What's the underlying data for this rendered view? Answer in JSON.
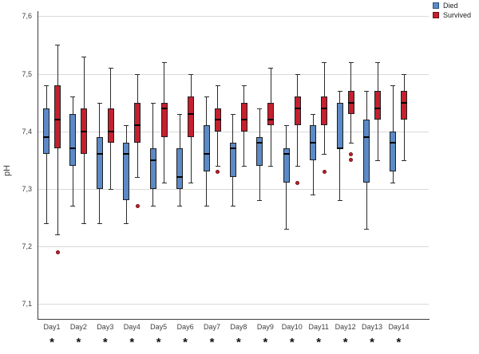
{
  "legend": {
    "items": [
      {
        "label": "Died",
        "color": "#5B8AC6",
        "border": "#2a4d7f"
      },
      {
        "label": "Survived",
        "color": "#C4202E",
        "border": "#6e0f18"
      }
    ]
  },
  "chart_data": {
    "type": "boxplot",
    "title": "",
    "xlabel": "",
    "ylabel": "pH",
    "ylim": [
      7.07,
      7.61
    ],
    "yticks": [
      7.6,
      7.5,
      7.4,
      7.3,
      7.2,
      7.1
    ],
    "ytick_labels": [
      "7,6",
      "7,5",
      "7,4",
      "7,3",
      "7,2",
      "7,1"
    ],
    "grid": "horizontal",
    "legend_position": "top-right",
    "categories": [
      "Day1",
      "Day2",
      "Day3",
      "Day4",
      "Day5",
      "Day6",
      "Day7",
      "Day8",
      "Day9",
      "Day10",
      "Day11",
      "Day12",
      "Day13",
      "Day14"
    ],
    "significance_markers": [
      "*",
      "*",
      "*",
      "*",
      "*",
      "*",
      "*",
      "*",
      "*",
      "*",
      "*",
      "*",
      "*",
      "*"
    ],
    "box_format": [
      "whisker_low",
      "q1",
      "median",
      "q3",
      "whisker_high"
    ],
    "series": [
      {
        "name": "Died",
        "color": "#5B8AC6",
        "boxes": [
          [
            7.24,
            7.36,
            7.39,
            7.44,
            7.48
          ],
          [
            7.27,
            7.34,
            7.37,
            7.43,
            7.46
          ],
          [
            7.24,
            7.3,
            7.36,
            7.39,
            7.45
          ],
          [
            7.24,
            7.28,
            7.36,
            7.38,
            7.41
          ],
          [
            7.27,
            7.3,
            7.35,
            7.37,
            7.45
          ],
          [
            7.27,
            7.3,
            7.32,
            7.37,
            7.43
          ],
          [
            7.27,
            7.33,
            7.36,
            7.41,
            7.46
          ],
          [
            7.27,
            7.32,
            7.37,
            7.38,
            7.43
          ],
          [
            7.28,
            7.34,
            7.38,
            7.39,
            7.44
          ],
          [
            7.23,
            7.31,
            7.36,
            7.37,
            7.41
          ],
          [
            7.29,
            7.35,
            7.38,
            7.41,
            7.43
          ],
          [
            7.28,
            7.37,
            7.37,
            7.45,
            7.47
          ],
          [
            7.23,
            7.31,
            7.39,
            7.42,
            7.47
          ],
          [
            7.31,
            7.33,
            7.38,
            7.4,
            7.48
          ]
        ],
        "outliers": [
          [],
          [],
          [],
          [],
          [],
          [],
          [],
          [],
          [],
          [],
          [],
          [],
          [],
          []
        ]
      },
      {
        "name": "Survived",
        "color": "#C4202E",
        "boxes": [
          [
            7.22,
            7.37,
            7.42,
            7.48,
            7.55
          ],
          [
            7.24,
            7.36,
            7.4,
            7.44,
            7.53
          ],
          [
            7.3,
            7.38,
            7.4,
            7.44,
            7.51
          ],
          [
            7.32,
            7.38,
            7.41,
            7.45,
            7.5
          ],
          [
            7.31,
            7.39,
            7.44,
            7.45,
            7.52
          ],
          [
            7.31,
            7.39,
            7.43,
            7.46,
            7.5
          ],
          [
            7.34,
            7.4,
            7.42,
            7.44,
            7.48
          ],
          [
            7.34,
            7.4,
            7.42,
            7.45,
            7.48
          ],
          [
            7.34,
            7.41,
            7.42,
            7.45,
            7.51
          ],
          [
            7.34,
            7.41,
            7.44,
            7.46,
            7.5
          ],
          [
            7.36,
            7.41,
            7.44,
            7.46,
            7.52
          ],
          [
            7.38,
            7.43,
            7.45,
            7.47,
            7.52
          ],
          [
            7.35,
            7.42,
            7.44,
            7.47,
            7.52
          ],
          [
            7.35,
            7.42,
            7.45,
            7.47,
            7.5
          ]
        ],
        "outliers": [
          [
            7.19
          ],
          [],
          [],
          [
            7.27
          ],
          [],
          [],
          [
            7.33
          ],
          [],
          [],
          [
            7.31
          ],
          [
            7.33
          ],
          [
            7.36,
            7.35
          ],
          [],
          []
        ]
      }
    ]
  }
}
